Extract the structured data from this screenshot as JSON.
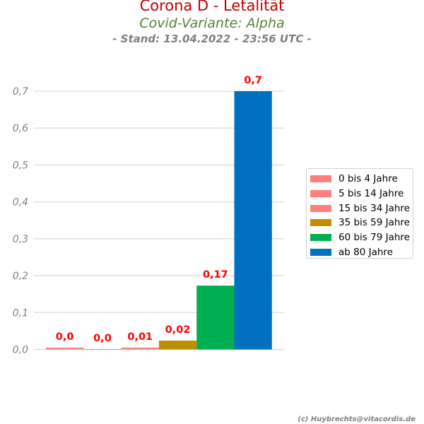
{
  "header": {
    "title": "Corona D - Letalität",
    "subtitle": "Covid-Variante: Alpha",
    "stand": "- Stand: 13.04.2022 - 23:56 UTC -"
  },
  "footer": {
    "credit": "(c) Huybrechts@vitacordis.de"
  },
  "chart_data": {
    "type": "bar",
    "title": "Corona D - Letalität",
    "xlabel": "",
    "ylabel": "",
    "ylim": [
      0,
      0.7
    ],
    "yticks": [
      0,
      0.1,
      0.2,
      0.3,
      0.4,
      0.5,
      0.6,
      0.7
    ],
    "ytick_labels": [
      "0,0",
      "0,1",
      "0,2",
      "0,3",
      "0,4",
      "0,5",
      "0,6",
      "0,7"
    ],
    "grid": true,
    "legend_position": "right",
    "series": [
      {
        "name": "0 bis 4 Jahre",
        "value": 0.005,
        "label": "0,0",
        "color": "#ff7f7f"
      },
      {
        "name": "5 bis 14 Jahre",
        "value": 0.001,
        "label": "0,0",
        "color": "#ff7f7f"
      },
      {
        "name": "15 bis 34 Jahre",
        "value": 0.005,
        "label": "0,01",
        "color": "#ff7f7f"
      },
      {
        "name": "35 bis 59 Jahre",
        "value": 0.024,
        "label": "0,02",
        "color": "#bf8f00"
      },
      {
        "name": "60 bis 79 Jahre",
        "value": 0.173,
        "label": "0,17",
        "color": "#00b050"
      },
      {
        "name": "ab 80 Jahre",
        "value": 0.7,
        "label": "0,7",
        "color": "#0070c0"
      }
    ]
  },
  "colors": {
    "title": "#c00000",
    "subtitle": "#548235",
    "stand": "#808080",
    "value_label": "#ff0000",
    "gridline": "#d9d9d9",
    "tick_label": "#808080"
  }
}
